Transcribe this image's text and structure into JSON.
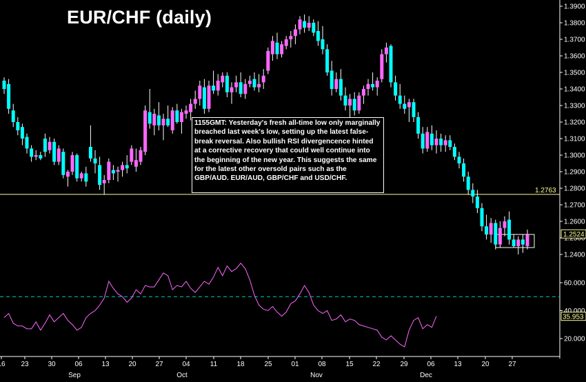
{
  "title": "EUR/CHF (daily)",
  "annotation": "1155GMT: Yesterday's fresh all-time low only marginally breached last week's low, setting up the latest false-break reversal. Also bullish RSI divergencence hinted at a corrective recovery that could well continue into the beginning of the new year. This suggests the same for the latest other oversold pairs such as the GBP/AUD. EUR/AUD, GBP/CHF and USD/CHF.",
  "colors": {
    "background": "#000000",
    "up_candle": "#ff66ff",
    "down_candle": "#00ffff",
    "rsi_line": "#ff66ff",
    "level_line": "#ffff99",
    "rsi_level_line": "#00cccc",
    "price_tag": "#ffff99"
  },
  "chart_data": [
    {
      "type": "candlestick",
      "title": "EUR/CHF (daily)",
      "x_tick_labels": [
        "16",
        "23",
        "30",
        "06",
        "13",
        "20",
        "27",
        "04",
        "11",
        "18",
        "25",
        "01",
        "08",
        "15",
        "22",
        "29",
        "06",
        "13",
        "20",
        "27"
      ],
      "month_labels": [
        "Sep",
        "Oct",
        "Nov",
        "Dec"
      ],
      "y_tick_labels": [
        "1.2400",
        "1.2500",
        "1.2600",
        "1.2700",
        "1.2800",
        "1.2900",
        "1.3000",
        "1.3100",
        "1.3200",
        "1.3300",
        "1.3400",
        "1.3500",
        "1.3600",
        "1.3700",
        "1.3800",
        "1.3900"
      ],
      "ylim": [
        1.236,
        1.392
      ],
      "grid": false,
      "horizontal_level": {
        "value": 1.2763,
        "label": "1.2763"
      },
      "last_price_label": "1.2524",
      "candles": [
        {
          "o": 1.345,
          "h": 1.347,
          "l": 1.337,
          "c": 1.34
        },
        {
          "o": 1.343,
          "h": 1.346,
          "l": 1.325,
          "c": 1.328
        },
        {
          "o": 1.327,
          "h": 1.331,
          "l": 1.317,
          "c": 1.32
        },
        {
          "o": 1.32,
          "h": 1.323,
          "l": 1.312,
          "c": 1.315
        },
        {
          "o": 1.317,
          "h": 1.319,
          "l": 1.306,
          "c": 1.31
        },
        {
          "o": 1.311,
          "h": 1.313,
          "l": 1.301,
          "c": 1.304
        },
        {
          "o": 1.304,
          "h": 1.306,
          "l": 1.296,
          "c": 1.299
        },
        {
          "o": 1.299,
          "h": 1.303,
          "l": 1.297,
          "c": 1.3
        },
        {
          "o": 1.3,
          "h": 1.302,
          "l": 1.297,
          "c": 1.298
        },
        {
          "o": 1.31,
          "h": 1.313,
          "l": 1.299,
          "c": 1.302
        },
        {
          "o": 1.303,
          "h": 1.311,
          "l": 1.301,
          "c": 1.308
        },
        {
          "o": 1.308,
          "h": 1.31,
          "l": 1.294,
          "c": 1.296
        },
        {
          "o": 1.296,
          "h": 1.306,
          "l": 1.294,
          "c": 1.304
        },
        {
          "o": 1.302,
          "h": 1.304,
          "l": 1.286,
          "c": 1.288
        },
        {
          "o": 1.287,
          "h": 1.291,
          "l": 1.281,
          "c": 1.29
        },
        {
          "o": 1.29,
          "h": 1.302,
          "l": 1.288,
          "c": 1.3
        },
        {
          "o": 1.3,
          "h": 1.301,
          "l": 1.284,
          "c": 1.286
        },
        {
          "o": 1.286,
          "h": 1.29,
          "l": 1.284,
          "c": 1.289
        },
        {
          "o": 1.289,
          "h": 1.293,
          "l": 1.281,
          "c": 1.284
        },
        {
          "o": 1.305,
          "h": 1.318,
          "l": 1.296,
          "c": 1.298
        },
        {
          "o": 1.298,
          "h": 1.303,
          "l": 1.289,
          "c": 1.295
        },
        {
          "o": 1.294,
          "h": 1.299,
          "l": 1.279,
          "c": 1.282
        },
        {
          "o": 1.283,
          "h": 1.288,
          "l": 1.276,
          "c": 1.285
        },
        {
          "o": 1.285,
          "h": 1.298,
          "l": 1.283,
          "c": 1.296
        },
        {
          "o": 1.291,
          "h": 1.294,
          "l": 1.285,
          "c": 1.289
        },
        {
          "o": 1.29,
          "h": 1.293,
          "l": 1.284,
          "c": 1.291
        },
        {
          "o": 1.291,
          "h": 1.296,
          "l": 1.287,
          "c": 1.294
        },
        {
          "o": 1.294,
          "h": 1.3,
          "l": 1.289,
          "c": 1.292
        },
        {
          "o": 1.296,
          "h": 1.306,
          "l": 1.294,
          "c": 1.304
        },
        {
          "o": 1.293,
          "h": 1.304,
          "l": 1.29,
          "c": 1.297
        },
        {
          "o": 1.296,
          "h": 1.305,
          "l": 1.294,
          "c": 1.303
        },
        {
          "o": 1.302,
          "h": 1.33,
          "l": 1.3,
          "c": 1.327
        },
        {
          "o": 1.326,
          "h": 1.34,
          "l": 1.316,
          "c": 1.319
        },
        {
          "o": 1.318,
          "h": 1.328,
          "l": 1.312,
          "c": 1.325
        },
        {
          "o": 1.324,
          "h": 1.332,
          "l": 1.315,
          "c": 1.318
        },
        {
          "o": 1.318,
          "h": 1.325,
          "l": 1.309,
          "c": 1.322
        },
        {
          "o": 1.322,
          "h": 1.33,
          "l": 1.317,
          "c": 1.318
        },
        {
          "o": 1.315,
          "h": 1.329,
          "l": 1.313,
          "c": 1.327
        },
        {
          "o": 1.327,
          "h": 1.331,
          "l": 1.319,
          "c": 1.32
        },
        {
          "o": 1.32,
          "h": 1.328,
          "l": 1.313,
          "c": 1.326
        },
        {
          "o": 1.325,
          "h": 1.33,
          "l": 1.322,
          "c": 1.327
        },
        {
          "o": 1.326,
          "h": 1.334,
          "l": 1.321,
          "c": 1.331
        },
        {
          "o": 1.331,
          "h": 1.339,
          "l": 1.328,
          "c": 1.334
        },
        {
          "o": 1.334,
          "h": 1.345,
          "l": 1.33,
          "c": 1.342
        },
        {
          "o": 1.341,
          "h": 1.346,
          "l": 1.325,
          "c": 1.328
        },
        {
          "o": 1.328,
          "h": 1.345,
          "l": 1.326,
          "c": 1.342
        },
        {
          "o": 1.342,
          "h": 1.351,
          "l": 1.337,
          "c": 1.339
        },
        {
          "o": 1.339,
          "h": 1.349,
          "l": 1.336,
          "c": 1.345
        },
        {
          "o": 1.344,
          "h": 1.35,
          "l": 1.341,
          "c": 1.348
        },
        {
          "o": 1.348,
          "h": 1.35,
          "l": 1.335,
          "c": 1.338
        },
        {
          "o": 1.338,
          "h": 1.344,
          "l": 1.331,
          "c": 1.341
        },
        {
          "o": 1.341,
          "h": 1.348,
          "l": 1.338,
          "c": 1.344
        },
        {
          "o": 1.344,
          "h": 1.35,
          "l": 1.335,
          "c": 1.337
        },
        {
          "o": 1.337,
          "h": 1.346,
          "l": 1.334,
          "c": 1.343
        },
        {
          "o": 1.343,
          "h": 1.348,
          "l": 1.341,
          "c": 1.345
        },
        {
          "o": 1.346,
          "h": 1.35,
          "l": 1.339,
          "c": 1.341
        },
        {
          "o": 1.341,
          "h": 1.349,
          "l": 1.338,
          "c": 1.343
        },
        {
          "o": 1.344,
          "h": 1.352,
          "l": 1.34,
          "c": 1.348
        },
        {
          "o": 1.351,
          "h": 1.365,
          "l": 1.349,
          "c": 1.363
        },
        {
          "o": 1.361,
          "h": 1.372,
          "l": 1.357,
          "c": 1.369
        },
        {
          "o": 1.368,
          "h": 1.374,
          "l": 1.358,
          "c": 1.361
        },
        {
          "o": 1.361,
          "h": 1.369,
          "l": 1.359,
          "c": 1.367
        },
        {
          "o": 1.366,
          "h": 1.372,
          "l": 1.364,
          "c": 1.37
        },
        {
          "o": 1.37,
          "h": 1.375,
          "l": 1.365,
          "c": 1.372
        },
        {
          "o": 1.372,
          "h": 1.379,
          "l": 1.367,
          "c": 1.376
        },
        {
          "o": 1.376,
          "h": 1.384,
          "l": 1.373,
          "c": 1.382
        },
        {
          "o": 1.381,
          "h": 1.385,
          "l": 1.374,
          "c": 1.377
        },
        {
          "o": 1.377,
          "h": 1.384,
          "l": 1.375,
          "c": 1.38
        },
        {
          "o": 1.38,
          "h": 1.382,
          "l": 1.372,
          "c": 1.374
        },
        {
          "o": 1.375,
          "h": 1.381,
          "l": 1.366,
          "c": 1.369
        },
        {
          "o": 1.37,
          "h": 1.378,
          "l": 1.361,
          "c": 1.364
        },
        {
          "o": 1.364,
          "h": 1.367,
          "l": 1.348,
          "c": 1.35
        },
        {
          "o": 1.351,
          "h": 1.357,
          "l": 1.336,
          "c": 1.34
        },
        {
          "o": 1.34,
          "h": 1.35,
          "l": 1.338,
          "c": 1.346
        },
        {
          "o": 1.346,
          "h": 1.352,
          "l": 1.333,
          "c": 1.336
        },
        {
          "o": 1.336,
          "h": 1.341,
          "l": 1.327,
          "c": 1.33
        },
        {
          "o": 1.33,
          "h": 1.337,
          "l": 1.322,
          "c": 1.334
        },
        {
          "o": 1.334,
          "h": 1.338,
          "l": 1.324,
          "c": 1.327
        },
        {
          "o": 1.327,
          "h": 1.338,
          "l": 1.325,
          "c": 1.336
        },
        {
          "o": 1.336,
          "h": 1.342,
          "l": 1.331,
          "c": 1.34
        },
        {
          "o": 1.34,
          "h": 1.346,
          "l": 1.336,
          "c": 1.343
        },
        {
          "o": 1.343,
          "h": 1.35,
          "l": 1.339,
          "c": 1.341
        },
        {
          "o": 1.341,
          "h": 1.347,
          "l": 1.336,
          "c": 1.345
        },
        {
          "o": 1.346,
          "h": 1.364,
          "l": 1.344,
          "c": 1.361
        },
        {
          "o": 1.361,
          "h": 1.368,
          "l": 1.356,
          "c": 1.365
        },
        {
          "o": 1.366,
          "h": 1.367,
          "l": 1.341,
          "c": 1.344
        },
        {
          "o": 1.344,
          "h": 1.348,
          "l": 1.333,
          "c": 1.336
        },
        {
          "o": 1.336,
          "h": 1.343,
          "l": 1.328,
          "c": 1.331
        },
        {
          "o": 1.331,
          "h": 1.336,
          "l": 1.325,
          "c": 1.328
        },
        {
          "o": 1.329,
          "h": 1.334,
          "l": 1.32,
          "c": 1.332
        },
        {
          "o": 1.332,
          "h": 1.334,
          "l": 1.32,
          "c": 1.323
        },
        {
          "o": 1.323,
          "h": 1.326,
          "l": 1.31,
          "c": 1.313
        },
        {
          "o": 1.313,
          "h": 1.317,
          "l": 1.301,
          "c": 1.304
        },
        {
          "o": 1.304,
          "h": 1.317,
          "l": 1.302,
          "c": 1.314
        },
        {
          "o": 1.313,
          "h": 1.318,
          "l": 1.303,
          "c": 1.306
        },
        {
          "o": 1.306,
          "h": 1.315,
          "l": 1.301,
          "c": 1.31
        },
        {
          "o": 1.31,
          "h": 1.313,
          "l": 1.302,
          "c": 1.306
        },
        {
          "o": 1.306,
          "h": 1.312,
          "l": 1.302,
          "c": 1.309
        },
        {
          "o": 1.309,
          "h": 1.312,
          "l": 1.303,
          "c": 1.305
        },
        {
          "o": 1.305,
          "h": 1.307,
          "l": 1.297,
          "c": 1.299
        },
        {
          "o": 1.299,
          "h": 1.302,
          "l": 1.292,
          "c": 1.295
        },
        {
          "o": 1.295,
          "h": 1.298,
          "l": 1.284,
          "c": 1.287
        },
        {
          "o": 1.287,
          "h": 1.29,
          "l": 1.276,
          "c": 1.279
        },
        {
          "o": 1.279,
          "h": 1.283,
          "l": 1.271,
          "c": 1.275
        },
        {
          "o": 1.275,
          "h": 1.279,
          "l": 1.265,
          "c": 1.268
        },
        {
          "o": 1.268,
          "h": 1.271,
          "l": 1.254,
          "c": 1.257
        },
        {
          "o": 1.257,
          "h": 1.264,
          "l": 1.249,
          "c": 1.252
        },
        {
          "o": 1.252,
          "h": 1.262,
          "l": 1.247,
          "c": 1.259
        },
        {
          "o": 1.259,
          "h": 1.261,
          "l": 1.243,
          "c": 1.246
        },
        {
          "o": 1.246,
          "h": 1.26,
          "l": 1.244,
          "c": 1.256
        },
        {
          "o": 1.256,
          "h": 1.263,
          "l": 1.251,
          "c": 1.26
        },
        {
          "o": 1.261,
          "h": 1.266,
          "l": 1.246,
          "c": 1.249
        },
        {
          "o": 1.249,
          "h": 1.252,
          "l": 1.244,
          "c": 1.245
        },
        {
          "o": 1.245,
          "h": 1.251,
          "l": 1.24,
          "c": 1.249
        },
        {
          "o": 1.249,
          "h": 1.252,
          "l": 1.241,
          "c": 1.246
        },
        {
          "o": 1.245,
          "h": 1.255,
          "l": 1.243,
          "c": 1.252
        }
      ]
    },
    {
      "type": "line",
      "y_tick_labels": [
        "20.000",
        "40.000",
        "60.000"
      ],
      "ylim": [
        12,
        80
      ],
      "horizontal_level": 50,
      "last_value_label": "35.953",
      "values": [
        35,
        38,
        31,
        29,
        29,
        27,
        27,
        32,
        26,
        31,
        37,
        32,
        35,
        38,
        33,
        30,
        26,
        28,
        35,
        38,
        40,
        44,
        49,
        61,
        56,
        52,
        50,
        46,
        49,
        55,
        52,
        58,
        57,
        57,
        62,
        67,
        65,
        55,
        58,
        57,
        61,
        56,
        53,
        57,
        61,
        59,
        64,
        71,
        65,
        72,
        68,
        70,
        74,
        70,
        62,
        51,
        44,
        41,
        40,
        43,
        39,
        36,
        39,
        45,
        47,
        52,
        58,
        53,
        44,
        40,
        38,
        40,
        33,
        34,
        37,
        32,
        34,
        33,
        30,
        29,
        28,
        27,
        26,
        21,
        19,
        22,
        19,
        16,
        14,
        26,
        33,
        35,
        27,
        30,
        28,
        36
      ]
    }
  ]
}
